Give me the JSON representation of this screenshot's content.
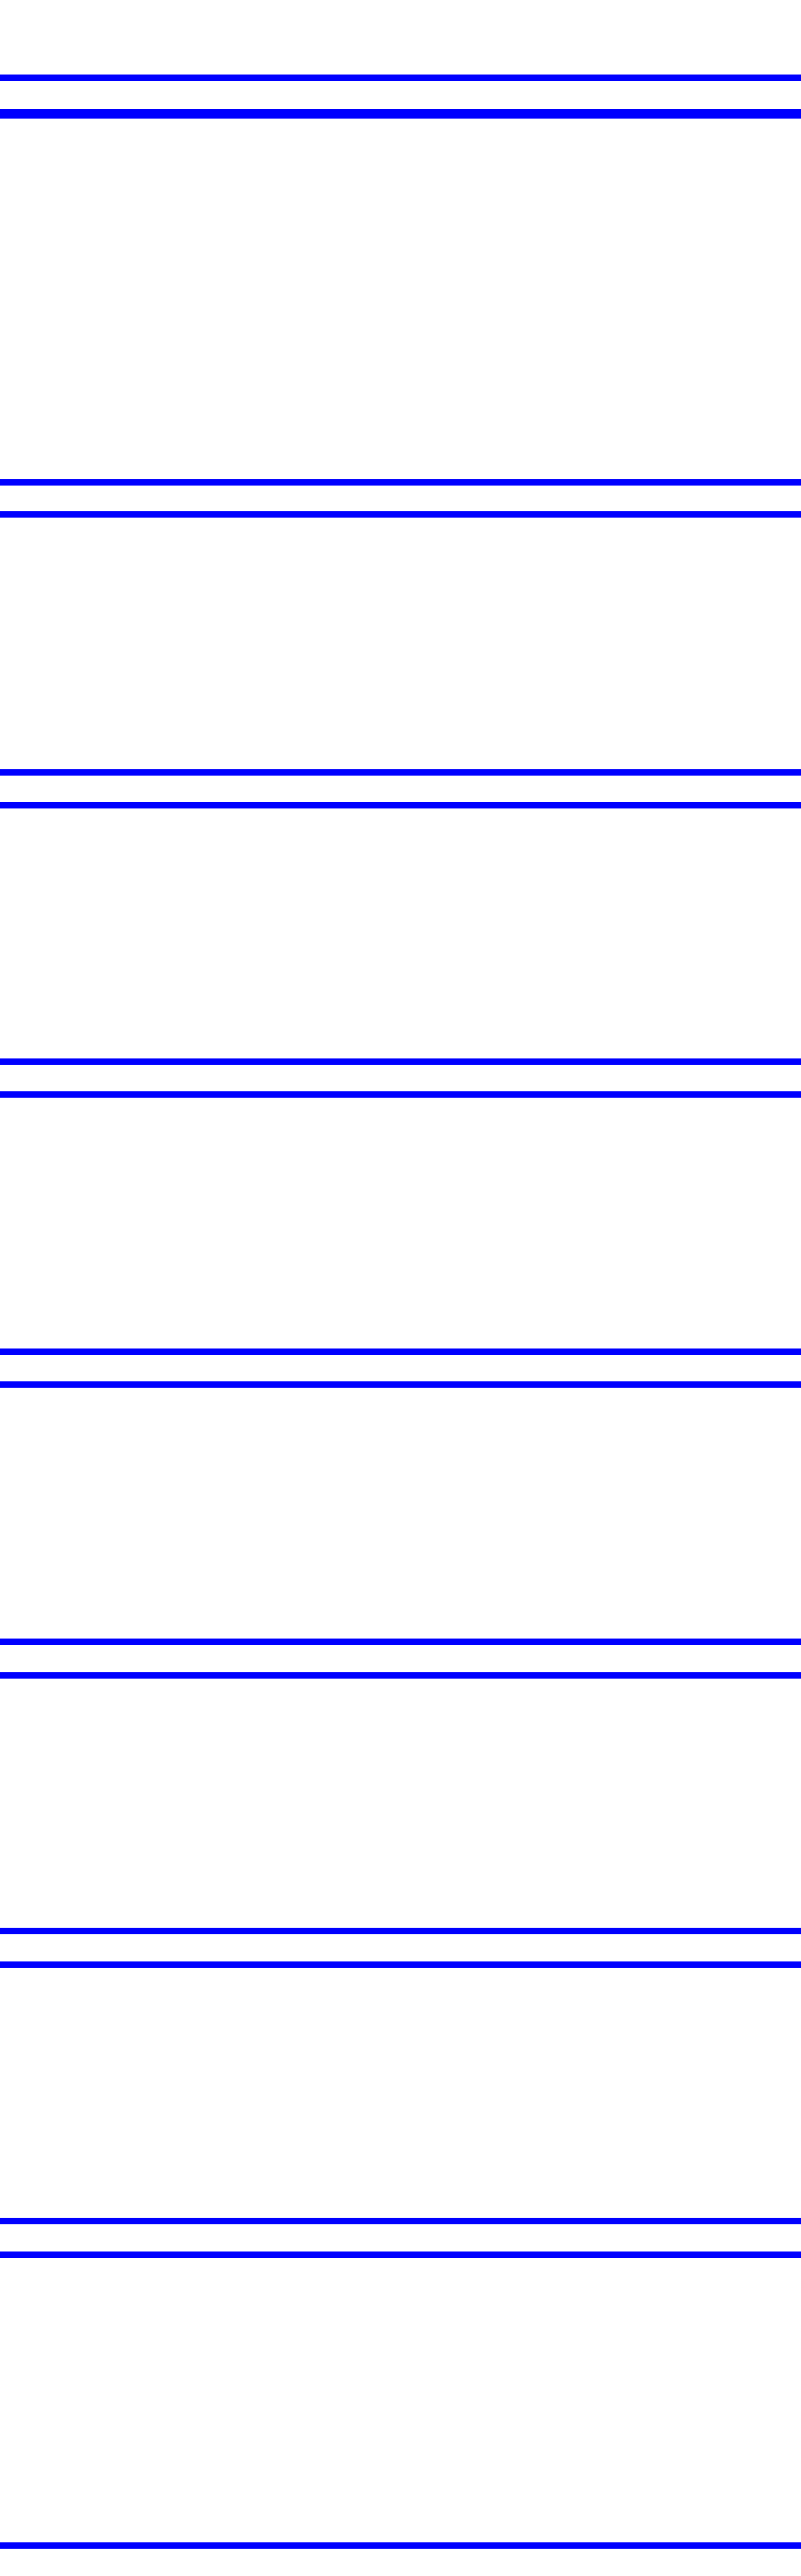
{
  "colors": {
    "background": "#ffffff",
    "rule": "#0000ff"
  },
  "blocks": [
    {},
    {},
    {},
    {},
    {},
    {},
    {},
    {},
    {}
  ]
}
